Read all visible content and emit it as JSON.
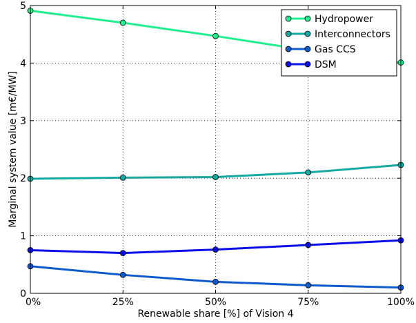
{
  "chart_data": {
    "type": "line",
    "x": [
      0,
      25,
      50,
      75,
      100
    ],
    "xticks": [
      "0%",
      "25%",
      "50%",
      "75%",
      "100%"
    ],
    "yticks": [
      "0",
      "1",
      "2",
      "3",
      "4",
      "5"
    ],
    "xlabel": "Renewable share [%] of Vision 4",
    "ylabel": "Marginal system value [m€/MW]",
    "xlim": [
      0,
      100
    ],
    "ylim": [
      0,
      5
    ],
    "grid": true,
    "legend_position": "top-right",
    "series": [
      {
        "name": "Hydropower",
        "color": "#1fef8f",
        "values": [
          4.91,
          4.7,
          4.47,
          4.22,
          4.01
        ]
      },
      {
        "name": "Interconnectors",
        "color": "#14a9a1",
        "values": [
          1.99,
          2.01,
          2.02,
          2.1,
          2.23
        ]
      },
      {
        "name": "Gas CCS",
        "color": "#0e5bcd",
        "values": [
          0.47,
          0.32,
          0.2,
          0.14,
          0.1
        ]
      },
      {
        "name": "DSM",
        "color": "#0a0ee6",
        "values": [
          0.75,
          0.7,
          0.76,
          0.84,
          0.92
        ]
      }
    ]
  }
}
